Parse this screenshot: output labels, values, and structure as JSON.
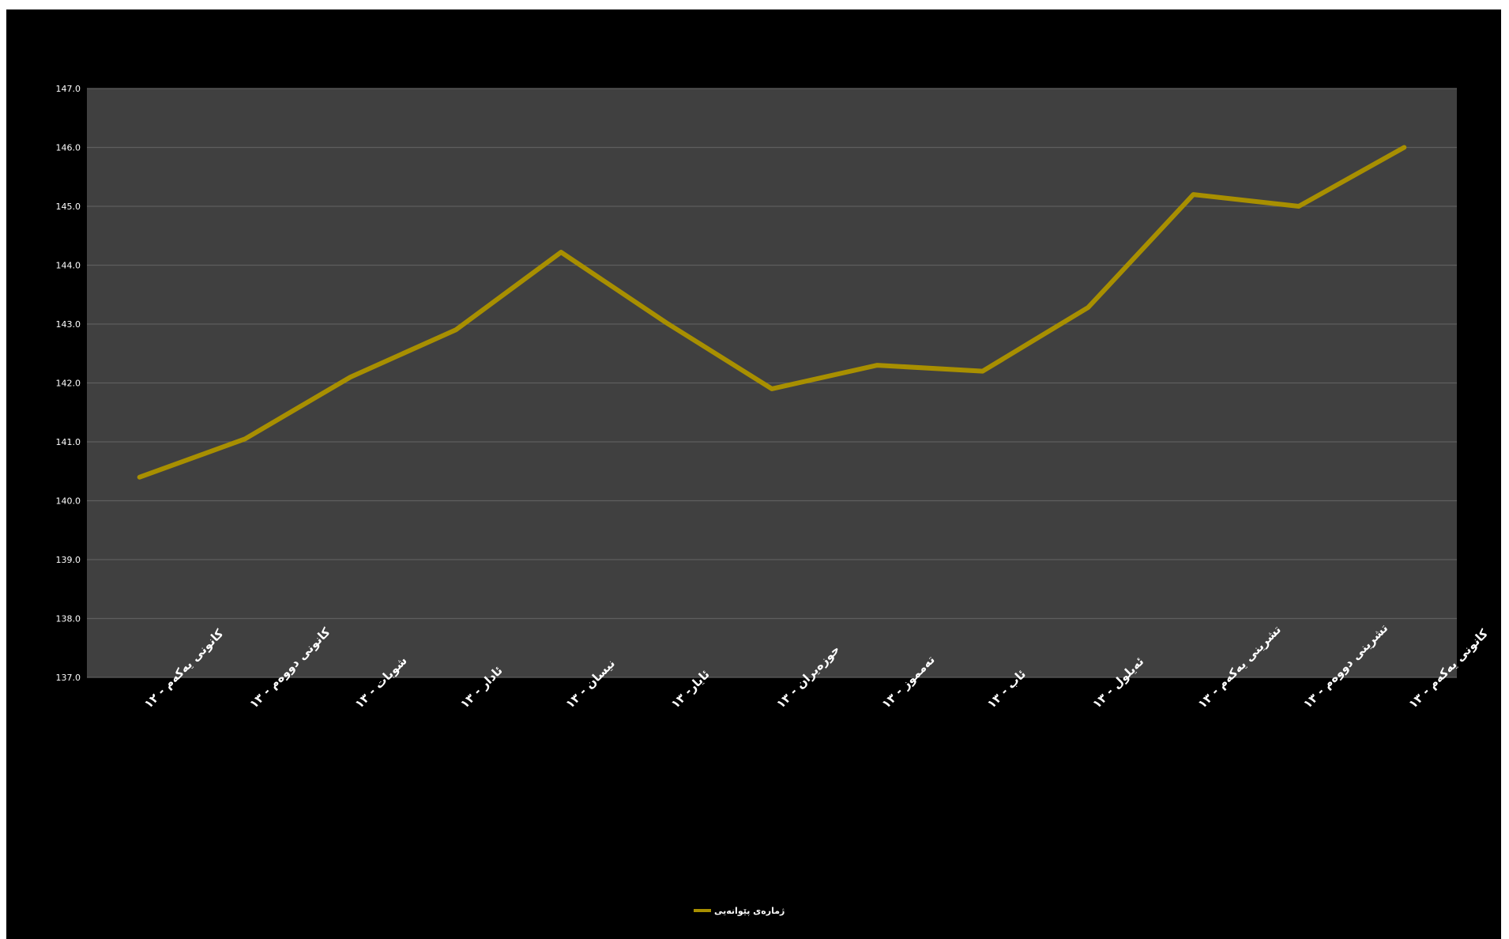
{
  "chart_data": {
    "type": "line",
    "categories": [
      "کانونی یەکەم - ١٢",
      "کانونی دووەم - ١٣",
      "شوبات - ١٣",
      "ئادار - ١٣",
      "نیسان - ١٣",
      "ئایار- ١٣",
      "حوزەیران - ١٣",
      "تەمموز - ١٣",
      "ئاب - ١٣",
      "ئەیلول - ١٣",
      "تشرینی یەکەم - ١٣",
      "تشرینی دووەم - ١٣",
      "کانونی یەکەم - ١٣"
    ],
    "series": [
      {
        "name": "ژمارەی پێوانەیی",
        "values": [
          140.4,
          141.05,
          142.1,
          142.9,
          144.22,
          143.02,
          141.9,
          142.3,
          142.2,
          143.28,
          145.2,
          145.0,
          146.0
        ]
      }
    ],
    "ylim": [
      137.0,
      147.0
    ],
    "yticks": [
      "137.0",
      "138.0",
      "139.0",
      "140.0",
      "141.0",
      "142.0",
      "143.0",
      "144.0",
      "145.0",
      "146.0",
      "147.0"
    ],
    "grid": true,
    "legend_position": "bottom",
    "title": "",
    "xlabel": "",
    "ylabel": ""
  },
  "colors": {
    "background": "#000000",
    "plot_area": "#404040",
    "gridline": "#5e5e5e",
    "series_line": "#a88f00",
    "text": "#ffffff"
  }
}
